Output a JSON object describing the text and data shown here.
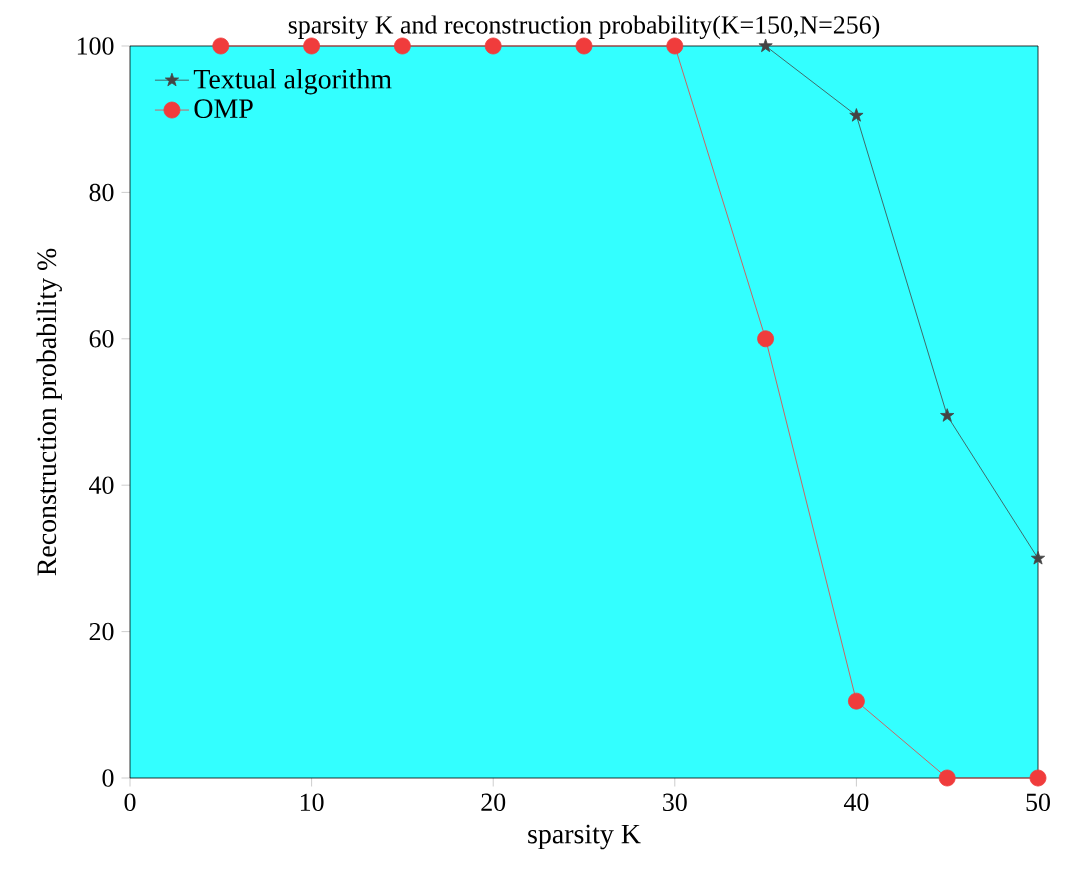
{
  "chart_data": {
    "type": "line",
    "title": "sparsity K and reconstruction probability(K=150,N=256)",
    "xlabel": "sparsity K",
    "ylabel": "Reconstruction probability %",
    "x": [
      5,
      10,
      15,
      20,
      25,
      30,
      35,
      40,
      45,
      50
    ],
    "series": [
      {
        "name": "Textual algorithm",
        "color": "#444444",
        "marker": "star",
        "values": [
          null,
          null,
          null,
          null,
          null,
          null,
          100,
          90.5,
          49.5,
          30
        ]
      },
      {
        "name": "OMP",
        "color": "#f03c3c",
        "marker": "circle",
        "values": [
          100,
          100,
          100,
          100,
          100,
          100,
          60,
          10.5,
          0,
          0
        ]
      }
    ],
    "xlim": [
      0,
      50
    ],
    "ylim": [
      0,
      100
    ],
    "xticks": [
      0,
      10,
      20,
      30,
      40,
      50
    ],
    "yticks": [
      0,
      20,
      40,
      60,
      80,
      100
    ],
    "grid": false,
    "legend": "top left"
  }
}
